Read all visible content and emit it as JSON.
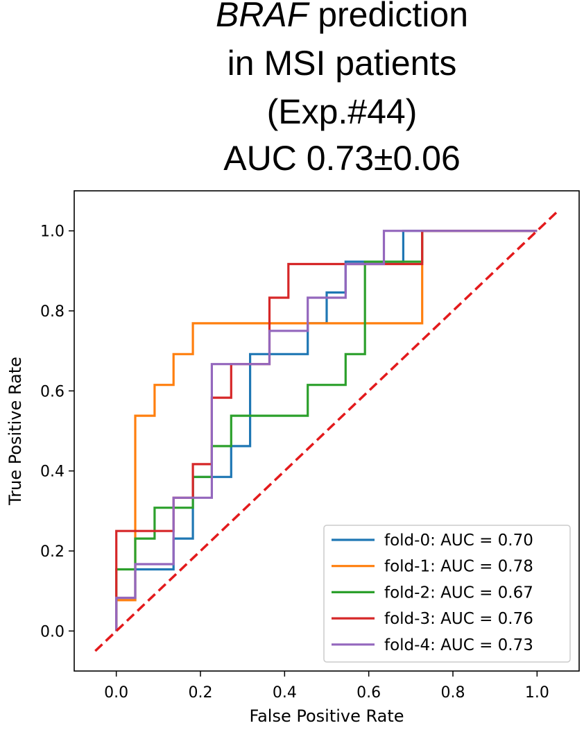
{
  "chart_data": {
    "type": "line",
    "title_lines": [
      {
        "italic": "BRAF",
        "text": " prediction"
      },
      {
        "italic": "",
        "text": "in MSI patients"
      },
      {
        "italic": "",
        "text": "(Exp.#44)"
      },
      {
        "italic": "",
        "text": "AUC 0.73±0.06"
      }
    ],
    "xlabel": "False Positive Rate",
    "ylabel": "True Positive Rate",
    "xlim": [
      -0.1,
      1.1
    ],
    "ylim": [
      -0.1,
      1.1
    ],
    "xticks": [
      {
        "value": 0.0,
        "label": "0.0"
      },
      {
        "value": 0.2,
        "label": "0.2"
      },
      {
        "value": 0.4,
        "label": "0.4"
      },
      {
        "value": 0.6,
        "label": "0.6"
      },
      {
        "value": 0.8,
        "label": "0.8"
      },
      {
        "value": 1.0,
        "label": "1.0"
      }
    ],
    "yticks": [
      {
        "value": 0.0,
        "label": "0.0"
      },
      {
        "value": 0.2,
        "label": "0.2"
      },
      {
        "value": 0.4,
        "label": "0.4"
      },
      {
        "value": 0.6,
        "label": "0.6"
      },
      {
        "value": 0.8,
        "label": "0.8"
      },
      {
        "value": 1.0,
        "label": "1.0"
      }
    ],
    "grid": false,
    "legend_position": "lower-right",
    "series": [
      {
        "name": "fold-0: AUC = 0.70",
        "color": "#1f77b4",
        "x": [
          0.0,
          0.0,
          0.045,
          0.045,
          0.136,
          0.136,
          0.182,
          0.182,
          0.227,
          0.227,
          0.273,
          0.273,
          0.318,
          0.318,
          0.364,
          0.364,
          0.455,
          0.455,
          0.5,
          0.5,
          0.545,
          0.545,
          0.682,
          0.682,
          1.0
        ],
        "y": [
          0.0,
          0.077,
          0.077,
          0.154,
          0.154,
          0.231,
          0.231,
          0.385,
          0.385,
          0.385,
          0.385,
          0.462,
          0.462,
          0.692,
          0.692,
          0.692,
          0.692,
          0.769,
          0.769,
          0.846,
          0.846,
          0.923,
          0.923,
          1.0,
          1.0
        ]
      },
      {
        "name": "fold-1: AUC = 0.78",
        "color": "#ff7f0e",
        "x": [
          0.0,
          0.0,
          0.045,
          0.045,
          0.091,
          0.091,
          0.136,
          0.136,
          0.182,
          0.182,
          0.727,
          0.727,
          1.0
        ],
        "y": [
          0.0,
          0.077,
          0.077,
          0.538,
          0.538,
          0.615,
          0.615,
          0.692,
          0.692,
          0.769,
          0.769,
          1.0,
          1.0
        ]
      },
      {
        "name": "fold-2: AUC = 0.67",
        "color": "#2ca02c",
        "x": [
          0.0,
          0.0,
          0.045,
          0.045,
          0.091,
          0.091,
          0.182,
          0.182,
          0.227,
          0.227,
          0.273,
          0.273,
          0.455,
          0.455,
          0.545,
          0.545,
          0.591,
          0.591,
          0.727,
          0.727,
          1.0
        ],
        "y": [
          0.0,
          0.154,
          0.154,
          0.231,
          0.231,
          0.308,
          0.308,
          0.385,
          0.385,
          0.462,
          0.462,
          0.538,
          0.538,
          0.615,
          0.615,
          0.692,
          0.692,
          0.923,
          0.923,
          1.0,
          1.0
        ]
      },
      {
        "name": "fold-3: AUC = 0.76",
        "color": "#d62728",
        "x": [
          0.0,
          0.0,
          0.136,
          0.136,
          0.182,
          0.182,
          0.227,
          0.227,
          0.273,
          0.273,
          0.364,
          0.364,
          0.409,
          0.409,
          0.727,
          0.727,
          1.0
        ],
        "y": [
          0.0,
          0.25,
          0.25,
          0.333,
          0.333,
          0.417,
          0.417,
          0.583,
          0.583,
          0.667,
          0.667,
          0.833,
          0.833,
          0.917,
          0.917,
          1.0,
          1.0
        ]
      },
      {
        "name": "fold-4: AUC = 0.73",
        "color": "#9467bd",
        "x": [
          0.0,
          0.0,
          0.045,
          0.045,
          0.136,
          0.136,
          0.227,
          0.227,
          0.364,
          0.364,
          0.455,
          0.455,
          0.545,
          0.545,
          0.636,
          0.636,
          1.0
        ],
        "y": [
          0.0,
          0.083,
          0.083,
          0.167,
          0.167,
          0.333,
          0.333,
          0.667,
          0.667,
          0.75,
          0.75,
          0.833,
          0.833,
          0.917,
          0.917,
          1.0,
          1.0
        ]
      }
    ],
    "reference_line": {
      "x": [
        -0.05,
        1.05
      ],
      "y": [
        -0.05,
        1.05
      ],
      "color": "#e31a1c",
      "style": "dashed"
    }
  }
}
